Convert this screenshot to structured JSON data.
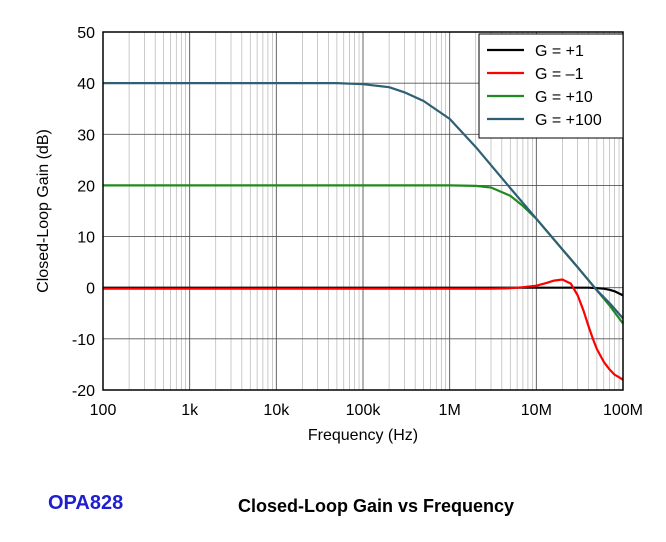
{
  "footer": {
    "part_number": "OPA828",
    "caption": "Closed-Loop Gain vs Frequency"
  },
  "chart_data": {
    "type": "line",
    "title": "",
    "xlabel": "Frequency (Hz)",
    "ylabel": "Closed-Loop Gain (dB)",
    "x_scale": "log",
    "xlim": [
      100,
      100000000
    ],
    "ylim": [
      -20,
      50
    ],
    "x_ticks": [
      100,
      1000,
      10000,
      100000,
      1000000,
      10000000,
      100000000
    ],
    "x_tick_labels": [
      "100",
      "1k",
      "10k",
      "100k",
      "1M",
      "10M",
      "100M"
    ],
    "y_ticks": [
      -20,
      -10,
      0,
      10,
      20,
      30,
      40,
      50
    ],
    "y_tick_labels": [
      "-20",
      "-10",
      "0",
      "10",
      "20",
      "30",
      "40",
      "50"
    ],
    "grid": true,
    "legend_position": "top-right",
    "series": [
      {
        "name": "G = +1",
        "color": "#000000",
        "x": [
          100,
          1000,
          10000,
          100000,
          1000000,
          10000000,
          20000000,
          30000000,
          40000000,
          50000000,
          60000000,
          70000000,
          80000000,
          100000000
        ],
        "y": [
          0,
          0,
          0,
          0,
          0,
          0,
          0,
          0,
          0,
          -0.1,
          -0.2,
          -0.4,
          -0.7,
          -1.5
        ]
      },
      {
        "name": "G = –1",
        "color": "#ff0000",
        "x": [
          100,
          1000,
          10000,
          100000,
          1000000,
          3000000,
          5000000,
          7000000,
          10000000,
          13000000,
          16000000,
          20000000,
          25000000,
          30000000,
          35000000,
          40000000,
          45000000,
          50000000,
          60000000,
          70000000,
          80000000,
          90000000,
          100000000
        ],
        "y": [
          -0.2,
          -0.2,
          -0.2,
          -0.2,
          -0.2,
          -0.2,
          -0.1,
          0.1,
          0.4,
          0.9,
          1.4,
          1.6,
          0.8,
          -1.5,
          -4.5,
          -7.5,
          -10,
          -12,
          -14.5,
          -16,
          -17,
          -17.5,
          -18
        ]
      },
      {
        "name": "G = +10",
        "color": "#1f8a1f",
        "x": [
          100,
          1000,
          10000,
          100000,
          1000000,
          2000000,
          3000000,
          5000000,
          7000000,
          10000000,
          20000000,
          30000000,
          50000000,
          70000000,
          100000000
        ],
        "y": [
          20,
          20,
          20,
          20,
          20,
          19.9,
          19.6,
          18,
          16,
          13.5,
          7.5,
          4,
          -0.5,
          -3.5,
          -7
        ]
      },
      {
        "name": "G = +100",
        "color": "#2f5f75",
        "x": [
          100,
          1000,
          10000,
          50000,
          100000,
          200000,
          300000,
          500000,
          1000000,
          2000000,
          5000000,
          10000000,
          20000000,
          30000000,
          50000000,
          70000000,
          100000000
        ],
        "y": [
          40,
          40,
          40,
          40,
          39.8,
          39.2,
          38.2,
          36.5,
          33,
          27.5,
          19.5,
          13.5,
          7.5,
          4,
          -0.5,
          -3,
          -6
        ]
      }
    ]
  }
}
